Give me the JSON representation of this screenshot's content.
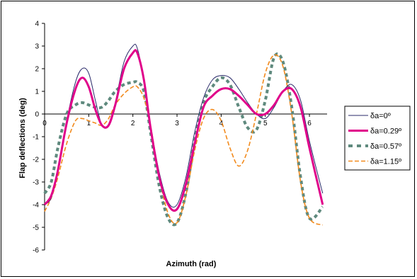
{
  "chart_data": {
    "type": "line",
    "title": "",
    "xlabel": "Azimuth (rad)",
    "ylabel": "Flap deflections (deg)",
    "xlim": [
      0,
      6.4
    ],
    "ylim": [
      -6,
      4
    ],
    "x_ticks": [
      "0",
      "1",
      "2",
      "3",
      "4",
      "5",
      "6"
    ],
    "y_ticks": [
      "4",
      "3",
      "2",
      "1",
      "0",
      "-1",
      "-2",
      "-3",
      "-4",
      "-5",
      "-6"
    ],
    "legend_position": "right",
    "grid": false,
    "series": [
      {
        "name": "δa=0º",
        "color": "#2a2a6a",
        "style": "thin-solid",
        "x": [
          0,
          0.15,
          0.3,
          0.5,
          0.7,
          0.85,
          1.0,
          1.15,
          1.3,
          1.45,
          1.6,
          1.8,
          2.0,
          2.1,
          2.25,
          2.4,
          2.6,
          2.8,
          3.0,
          3.2,
          3.4,
          3.6,
          3.8,
          4.0,
          4.2,
          4.4,
          4.6,
          4.8,
          5.0,
          5.2,
          5.4,
          5.6,
          5.8,
          6.0,
          6.3
        ],
        "values": [
          -4.0,
          -3.7,
          -2.5,
          -0.3,
          1.4,
          2.0,
          1.8,
          0.6,
          -0.5,
          -0.5,
          0.5,
          2.3,
          3.0,
          2.9,
          1.5,
          -0.5,
          -2.6,
          -3.9,
          -4.0,
          -2.8,
          -0.8,
          0.7,
          1.5,
          1.7,
          1.6,
          1.1,
          0.5,
          0.0,
          -0.2,
          0.3,
          1.0,
          1.3,
          0.6,
          -1.2,
          -3.5
        ]
      },
      {
        "name": "δa=0.29º",
        "color": "#e0008a",
        "style": "thick-solid",
        "x": [
          0,
          0.15,
          0.3,
          0.5,
          0.7,
          0.85,
          1.0,
          1.15,
          1.3,
          1.45,
          1.6,
          1.8,
          2.0,
          2.1,
          2.25,
          2.4,
          2.6,
          2.8,
          3.0,
          3.2,
          3.4,
          3.6,
          3.8,
          4.0,
          4.2,
          4.4,
          4.6,
          4.8,
          5.0,
          5.2,
          5.4,
          5.6,
          5.8,
          6.0,
          6.3
        ],
        "values": [
          -4.0,
          -3.6,
          -2.5,
          -0.4,
          1.1,
          1.6,
          1.2,
          0.2,
          -0.5,
          -0.5,
          0.4,
          2.0,
          2.7,
          2.7,
          1.5,
          -0.6,
          -2.8,
          -4.0,
          -4.2,
          -3.1,
          -1.3,
          0.3,
          0.8,
          1.1,
          1.1,
          0.8,
          0.4,
          0.0,
          0.0,
          0.4,
          1.0,
          1.1,
          0.3,
          -1.5,
          -4.0
        ]
      },
      {
        "name": "δa=0.57º",
        "color": "#5f8a7e",
        "style": "dash-markers",
        "x": [
          0,
          0.15,
          0.3,
          0.5,
          0.7,
          0.85,
          1.0,
          1.15,
          1.3,
          1.45,
          1.6,
          1.8,
          2.0,
          2.1,
          2.25,
          2.4,
          2.6,
          2.8,
          3.0,
          3.2,
          3.4,
          3.6,
          3.8,
          4.0,
          4.2,
          4.4,
          4.6,
          4.8,
          5.0,
          5.2,
          5.4,
          5.6,
          5.8,
          6.0,
          6.3
        ],
        "values": [
          -3.5,
          -3.0,
          -1.5,
          0.0,
          0.4,
          0.5,
          0.4,
          0.3,
          0.3,
          0.6,
          1.0,
          1.3,
          1.4,
          1.4,
          1.0,
          -0.8,
          -3.2,
          -4.6,
          -4.8,
          -3.5,
          -1.2,
          0.5,
          1.2,
          1.6,
          1.3,
          0.3,
          -0.6,
          -0.7,
          0.6,
          2.5,
          2.3,
          0.3,
          -2.8,
          -4.6,
          -4.1
        ]
      },
      {
        "name": "δa=1.15º",
        "color": "#f28a1c",
        "style": "dashed",
        "x": [
          0,
          0.15,
          0.3,
          0.5,
          0.7,
          0.85,
          1.0,
          1.15,
          1.3,
          1.45,
          1.6,
          1.8,
          2.0,
          2.1,
          2.25,
          2.4,
          2.6,
          2.8,
          3.0,
          3.2,
          3.4,
          3.6,
          3.8,
          4.0,
          4.2,
          4.4,
          4.6,
          4.8,
          5.0,
          5.2,
          5.4,
          5.6,
          5.8,
          6.0,
          6.3
        ],
        "values": [
          -4.3,
          -3.7,
          -2.8,
          -1.3,
          -0.3,
          -0.2,
          -0.3,
          -0.4,
          -0.5,
          -0.2,
          0.4,
          0.9,
          1.2,
          1.2,
          0.7,
          -0.5,
          -2.8,
          -4.4,
          -4.8,
          -3.6,
          -1.6,
          -0.2,
          0.2,
          -0.3,
          -1.5,
          -2.3,
          -1.6,
          0.0,
          1.8,
          2.6,
          2.1,
          0.0,
          -3.0,
          -4.6,
          -4.9
        ]
      }
    ]
  }
}
